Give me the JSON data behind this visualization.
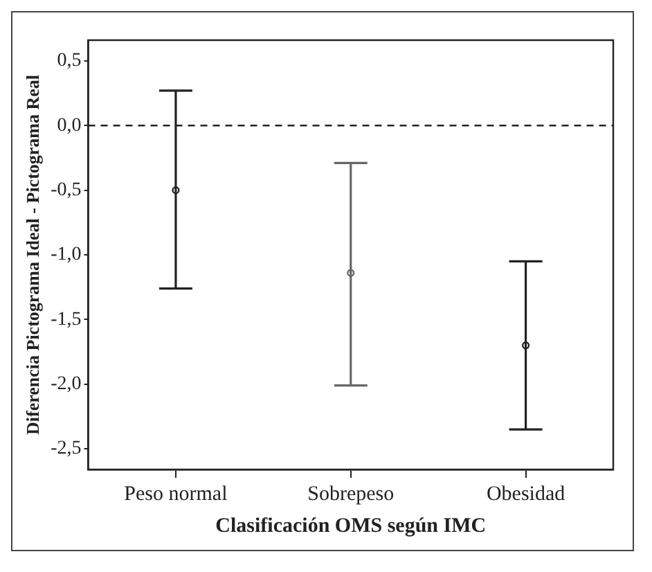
{
  "chart_data": {
    "type": "scatter",
    "xlabel": "Clasificación OMS según IMC",
    "ylabel": "Diferencia Pictograma Ideal - Pictograma Real",
    "categories": [
      "Peso normal",
      "Sobrepeso",
      "Obesidad"
    ],
    "values": [
      -0.5,
      -1.14,
      -1.7
    ],
    "errors": [
      [
        -1.26,
        0.27
      ],
      [
        -2.01,
        -0.29
      ],
      [
        -2.35,
        -1.05
      ]
    ],
    "colors": [
      "#222222",
      "#666666",
      "#222222"
    ],
    "ylim": [
      -2.66,
      0.66
    ],
    "yticks": [
      {
        "value": 0.5,
        "label": "0,5"
      },
      {
        "value": 0,
        "label": "0,0"
      },
      {
        "value": -0.5,
        "label": "-0,5"
      },
      {
        "value": -1,
        "label": "-1,0"
      },
      {
        "value": -1.5,
        "label": "-1,5"
      },
      {
        "value": -2,
        "label": "-2,0"
      },
      {
        "value": -2.5,
        "label": "-2,5"
      }
    ],
    "ref_lines": [
      {
        "axis": "y",
        "value": 0,
        "line_style": "dashed",
        "color": "#222222"
      }
    ],
    "marker": "circle",
    "grid": false,
    "legend": false
  }
}
